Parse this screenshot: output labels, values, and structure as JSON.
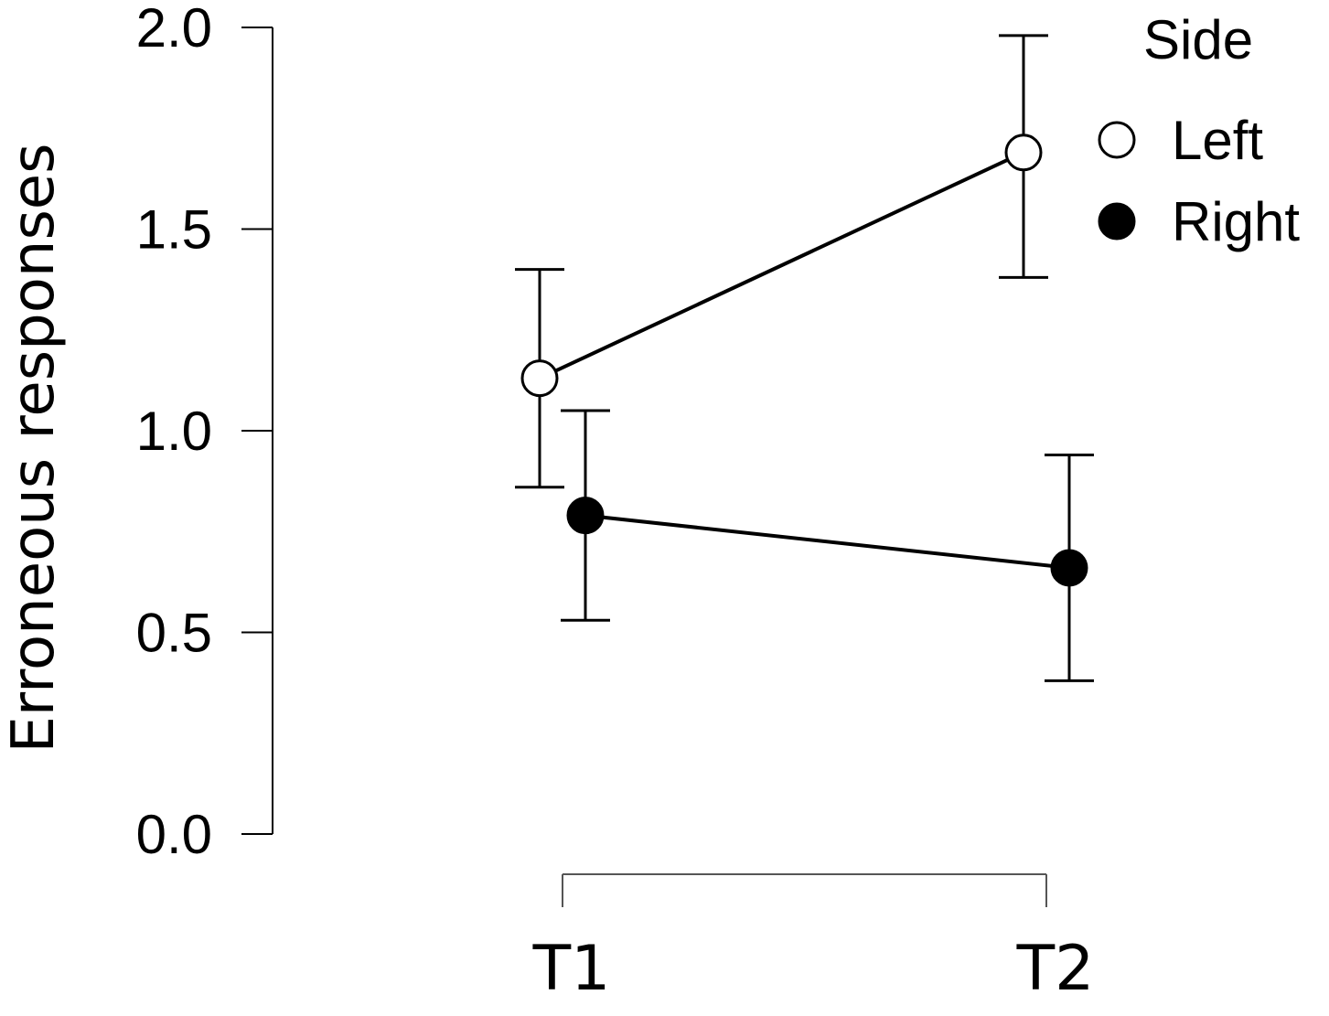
{
  "chart_data": {
    "type": "line",
    "ylabel": "Erroneous responses",
    "xlabel": "",
    "categories": [
      "T1",
      "T2"
    ],
    "ylim": [
      0,
      2
    ],
    "yticks": [
      "0.0",
      "0.5",
      "1.0",
      "1.5",
      "2.0"
    ],
    "legend": {
      "title": "Side",
      "placement": "top-right"
    },
    "grid": false,
    "series": [
      {
        "name": "Left",
        "marker": "open-circle",
        "values": [
          1.13,
          1.69
        ],
        "lower": [
          0.86,
          1.38
        ],
        "upper": [
          1.4,
          1.98
        ]
      },
      {
        "name": "Right",
        "marker": "filled-circle",
        "values": [
          0.79,
          0.66
        ],
        "lower": [
          0.53,
          0.38
        ],
        "upper": [
          1.05,
          0.94
        ]
      }
    ]
  }
}
